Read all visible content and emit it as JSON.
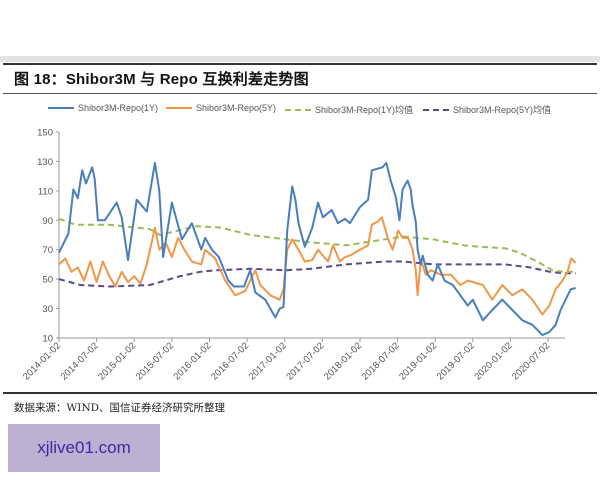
{
  "figure": {
    "title": "图 18：Shibor3M 与 Repo 互换利差走势图",
    "source": "数据来源：WIND、国信证券经济研究所整理"
  },
  "watermark": {
    "text": "xjlive01.com"
  },
  "legend": [
    {
      "label": "Shibor3M-Repo(1Y)",
      "color": "#4a7ebb",
      "style": "solid"
    },
    {
      "label": "Shibor3M-Repo(5Y)",
      "color": "#f0974a",
      "style": "solid"
    },
    {
      "label": "Shibor3M-Repo(1Y)均值",
      "color": "#9bbb59",
      "style": "dashed"
    },
    {
      "label": "Shibor3M-Repo(5Y)均值",
      "color": "#5b4a8a",
      "style": "dashed"
    }
  ],
  "chart_data": {
    "type": "line",
    "title": "Shibor3M 与 Repo 互换利差走势图",
    "xlabel": "",
    "ylabel": "",
    "ylim": [
      10,
      150
    ],
    "yticks": [
      10,
      30,
      50,
      70,
      90,
      110,
      130,
      150
    ],
    "xticks": [
      "2014-01-02",
      "2014-07-02",
      "2015-01-02",
      "2015-07-02",
      "2016-01-02",
      "2016-07-02",
      "2017-01-02",
      "2017-07-02",
      "2018-01-02",
      "2018-07-02",
      "2019-01-02",
      "2019-07-02",
      "2020-01-02",
      "2020-07-02"
    ],
    "grid": false,
    "legend_position": "top",
    "x_unit": "months since 2014-01",
    "series": [
      {
        "name": "Shibor3M-Repo(1Y)",
        "color": "#4a7ebb",
        "points": [
          [
            0,
            68
          ],
          [
            1.5,
            81
          ],
          [
            2.3,
            111
          ],
          [
            3,
            105
          ],
          [
            3.7,
            124
          ],
          [
            4.3,
            115
          ],
          [
            5.3,
            126
          ],
          [
            5.7,
            118
          ],
          [
            6.2,
            90
          ],
          [
            7.3,
            90
          ],
          [
            9.2,
            102
          ],
          [
            10,
            92
          ],
          [
            11,
            63
          ],
          [
            12.4,
            104
          ],
          [
            14,
            96
          ],
          [
            15.3,
            129
          ],
          [
            16,
            110
          ],
          [
            16.6,
            65
          ],
          [
            18,
            102
          ],
          [
            19.6,
            77
          ],
          [
            21.2,
            88
          ],
          [
            22.7,
            70
          ],
          [
            23.3,
            78
          ],
          [
            24.4,
            70
          ],
          [
            25.5,
            65
          ],
          [
            27,
            49
          ],
          [
            27.9,
            45
          ],
          [
            29.5,
            45
          ],
          [
            30.5,
            56
          ],
          [
            31.3,
            41
          ],
          [
            32.9,
            36
          ],
          [
            34.5,
            24
          ],
          [
            35.2,
            30
          ],
          [
            35.8,
            31
          ],
          [
            36.4,
            83
          ],
          [
            37.2,
            113
          ],
          [
            37.7,
            104
          ],
          [
            38.2,
            88
          ],
          [
            39.2,
            72
          ],
          [
            40.4,
            85
          ],
          [
            41.3,
            102
          ],
          [
            42.1,
            92
          ],
          [
            43.5,
            97
          ],
          [
            44.5,
            88
          ],
          [
            45.6,
            91
          ],
          [
            46.4,
            88
          ],
          [
            48,
            99
          ],
          [
            49.3,
            104
          ],
          [
            49.9,
            124
          ],
          [
            51.6,
            126
          ],
          [
            52.2,
            129
          ],
          [
            52.9,
            117
          ],
          [
            53.7,
            106
          ],
          [
            54.3,
            90
          ],
          [
            54.8,
            111
          ],
          [
            55.6,
            117
          ],
          [
            56.1,
            111
          ],
          [
            56.4,
            100
          ],
          [
            56.9,
            89
          ],
          [
            57.2,
            70
          ],
          [
            57.7,
            60
          ],
          [
            58,
            66
          ],
          [
            58.8,
            53
          ],
          [
            59.6,
            49
          ],
          [
            60.4,
            60
          ],
          [
            61.5,
            49
          ],
          [
            62.8,
            46
          ],
          [
            64,
            39
          ],
          [
            65.2,
            32
          ],
          [
            66,
            36
          ],
          [
            67.6,
            22
          ],
          [
            69.1,
            29
          ],
          [
            70.7,
            36
          ],
          [
            72.3,
            29
          ],
          [
            73.9,
            22
          ],
          [
            75.5,
            19
          ],
          [
            77.1,
            12
          ],
          [
            78.2,
            14
          ],
          [
            79.2,
            19
          ],
          [
            80,
            29
          ],
          [
            80.8,
            36
          ],
          [
            81.6,
            43
          ],
          [
            82.4,
            44
          ]
        ]
      },
      {
        "name": "Shibor3M-Repo(5Y)",
        "color": "#f0974a",
        "points": [
          [
            0,
            60
          ],
          [
            1,
            64
          ],
          [
            2,
            55
          ],
          [
            3,
            58
          ],
          [
            4,
            49
          ],
          [
            5,
            62
          ],
          [
            6,
            48
          ],
          [
            7,
            62
          ],
          [
            8,
            52
          ],
          [
            9,
            45
          ],
          [
            10,
            55
          ],
          [
            11,
            48
          ],
          [
            12,
            52
          ],
          [
            13,
            47
          ],
          [
            14,
            60
          ],
          [
            15.3,
            85
          ],
          [
            16,
            70
          ],
          [
            17,
            75
          ],
          [
            18,
            65
          ],
          [
            19,
            78
          ],
          [
            20,
            70
          ],
          [
            21.2,
            62
          ],
          [
            22.7,
            60
          ],
          [
            23.3,
            70
          ],
          [
            24.9,
            64
          ],
          [
            26.5,
            49
          ],
          [
            28.1,
            39
          ],
          [
            29.7,
            42
          ],
          [
            31.3,
            56
          ],
          [
            32.1,
            46
          ],
          [
            33.7,
            39
          ],
          [
            35.2,
            36
          ],
          [
            35.8,
            43
          ],
          [
            36.4,
            70
          ],
          [
            37.2,
            77
          ],
          [
            38.2,
            70
          ],
          [
            39.2,
            62
          ],
          [
            40.4,
            63
          ],
          [
            41.3,
            70
          ],
          [
            42.9,
            62
          ],
          [
            43.7,
            73
          ],
          [
            44.8,
            62
          ],
          [
            45.6,
            65
          ],
          [
            46.4,
            66
          ],
          [
            48,
            70
          ],
          [
            49.3,
            73
          ],
          [
            49.9,
            87
          ],
          [
            50.8,
            89
          ],
          [
            51.5,
            92
          ],
          [
            52.5,
            77
          ],
          [
            53.2,
            70
          ],
          [
            54.1,
            83
          ],
          [
            54.8,
            78
          ],
          [
            55.7,
            78
          ],
          [
            56.4,
            70
          ],
          [
            56.9,
            56
          ],
          [
            57.2,
            39
          ],
          [
            57.7,
            63
          ],
          [
            58.5,
            53
          ],
          [
            59.3,
            56
          ],
          [
            60.9,
            53
          ],
          [
            62.5,
            53
          ],
          [
            64,
            46
          ],
          [
            65.2,
            49
          ],
          [
            66,
            48
          ],
          [
            67.6,
            46
          ],
          [
            69.1,
            36
          ],
          [
            70.7,
            46
          ],
          [
            72.3,
            39
          ],
          [
            73.9,
            43
          ],
          [
            75.5,
            36
          ],
          [
            77.1,
            26
          ],
          [
            78.2,
            32
          ],
          [
            79.2,
            43
          ],
          [
            80.3,
            49
          ],
          [
            81.1,
            55
          ],
          [
            81.7,
            64
          ],
          [
            82.4,
            61
          ]
        ]
      },
      {
        "name": "Shibor3M-Repo(1Y)均值",
        "color": "#9bbb59",
        "points": [
          [
            0,
            91
          ],
          [
            2.6,
            87
          ],
          [
            8,
            87
          ],
          [
            14.5,
            84
          ],
          [
            16.1,
            80
          ],
          [
            21.8,
            86
          ],
          [
            25.8,
            85
          ],
          [
            30.6,
            80
          ],
          [
            36.2,
            77
          ],
          [
            40.2,
            75
          ],
          [
            45.8,
            73
          ],
          [
            51.9,
            77
          ],
          [
            54.9,
            79
          ],
          [
            59.7,
            77
          ],
          [
            64.5,
            73
          ],
          [
            67.1,
            72
          ],
          [
            71.1,
            71
          ],
          [
            73.5,
            68
          ],
          [
            76.7,
            61
          ],
          [
            78.7,
            56
          ],
          [
            80.4,
            55
          ],
          [
            82.4,
            55
          ]
        ]
      },
      {
        "name": "Shibor3M-Repo(5Y)均值",
        "color": "#5b4a8a",
        "points": [
          [
            0,
            50
          ],
          [
            3.4,
            46
          ],
          [
            8.1,
            45
          ],
          [
            14.5,
            46
          ],
          [
            19.3,
            52
          ],
          [
            22.5,
            55
          ],
          [
            24.9,
            56
          ],
          [
            30.6,
            57
          ],
          [
            36.2,
            56
          ],
          [
            40.2,
            57
          ],
          [
            45.8,
            60
          ],
          [
            51.9,
            62
          ],
          [
            54.9,
            62
          ],
          [
            59.7,
            60
          ],
          [
            64.5,
            60
          ],
          [
            67.1,
            60
          ],
          [
            71.1,
            60
          ],
          [
            75.1,
            58
          ],
          [
            78.3,
            55
          ],
          [
            80.4,
            54
          ],
          [
            82.4,
            54
          ]
        ]
      }
    ]
  }
}
